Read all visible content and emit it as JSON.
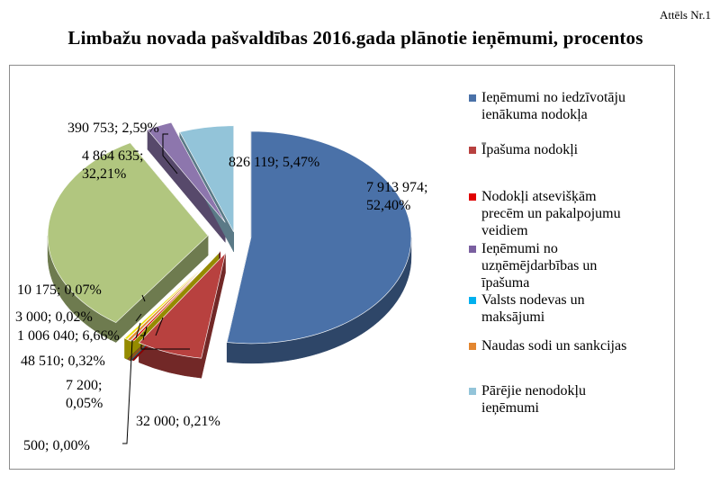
{
  "figure_number": "Attēls Nr.1",
  "chart_data": {
    "type": "pie",
    "title": "Limbažu novada pašvaldības 2016.gada plānotie ieņēmumi, procentos",
    "slices": [
      {
        "value": 7913974,
        "percent": 52.4,
        "label_lines": [
          "7 913 974;",
          "52,40%"
        ],
        "color": "#4a71a8"
      },
      {
        "value": 1006040,
        "percent": 6.66,
        "label_lines": [
          "1 006 040; 6,66%"
        ],
        "color": "#b8413f"
      },
      {
        "value": 32000,
        "percent": 0.21,
        "label_lines": [
          "32 000; 0,21%"
        ],
        "color": "#e00000"
      },
      {
        "value": 500,
        "percent": 0.0,
        "label_lines": [
          "500; 0,00%"
        ],
        "color": "#1f3b5e"
      },
      {
        "value": 7200,
        "percent": 0.05,
        "label_lines": [
          "7 200;",
          "0,05%"
        ],
        "color": "#00b0ee"
      },
      {
        "value": 48510,
        "percent": 0.32,
        "label_lines": [
          "48 510; 0,32%"
        ],
        "color": "#e3862f"
      },
      {
        "value": 3000,
        "percent": 0.02,
        "label_lines": [
          "3 000; 0,02%"
        ],
        "color": "#2a5d3a"
      },
      {
        "value": 10175,
        "percent": 0.07,
        "label_lines": [
          "10 175; 0,07%"
        ],
        "color": "#f0e000"
      },
      {
        "value": 4864635,
        "percent": 32.21,
        "label_lines": [
          "4 864 635;",
          "32,21%"
        ],
        "color": "#b1c67f"
      },
      {
        "value": 390753,
        "percent": 2.59,
        "label_lines": [
          "390 753; 2,59%"
        ],
        "color": "#8d76ad"
      },
      {
        "value": 826119,
        "percent": 5.47,
        "label_lines": [
          "826 119; 5,47%"
        ],
        "color": "#93c4d9"
      }
    ],
    "legend": {
      "placement": "right",
      "entries": [
        {
          "lines": [
            "Ieņēmumi no iedzīvotāju",
            "ienākuma nodokļa"
          ],
          "color": "#4a71a8"
        },
        {
          "lines": [
            "Īpašuma nodokļi"
          ],
          "color": "#b8413f"
        },
        {
          "lines": [
            "Nodokļi atsevišķām",
            "precēm un pakalpojumu",
            "veidiem"
          ],
          "color": "#e00000"
        },
        {
          "lines": [
            "Ieņēmumi no",
            "uzņēmējdarbības un",
            "īpašuma"
          ],
          "color": "#7a5fa0"
        },
        {
          "lines": [
            "Valsts nodevas un",
            "maksājumi"
          ],
          "color": "#00b0ee"
        },
        {
          "lines": [
            "Naudas sodi un sankcijas"
          ],
          "color": "#e3862f"
        },
        {
          "lines": [
            "Pārējie nenodokļu",
            "ieņēmumi"
          ],
          "color": "#93c4d9"
        }
      ]
    }
  }
}
